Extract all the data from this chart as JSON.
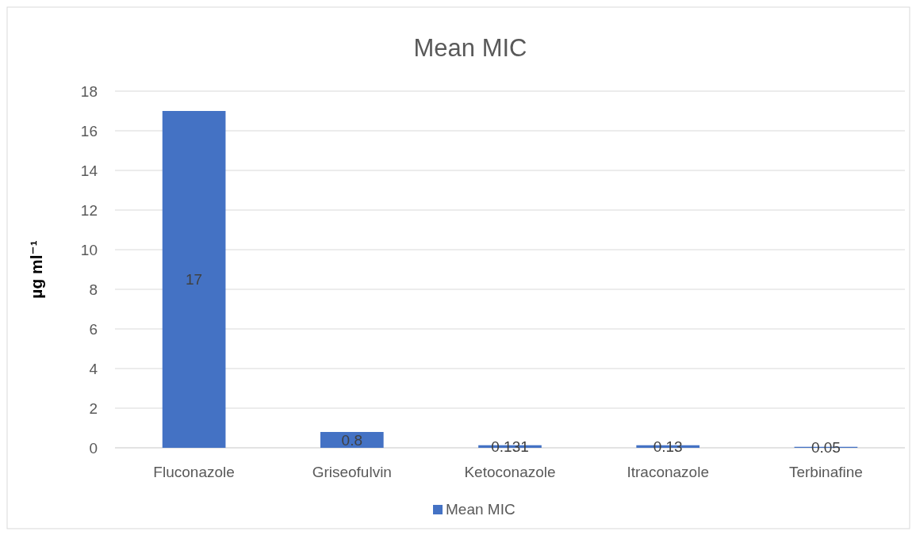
{
  "chart_data": {
    "type": "bar",
    "title": "Mean MIC",
    "ylabel": "µg ml⁻¹",
    "categories": [
      "Fluconazole",
      "Griseofulvin",
      "Ketoconazole",
      "Itraconazole",
      "Terbinafine"
    ],
    "series": [
      {
        "name": "Mean MIC",
        "color": "#4472c4",
        "values": [
          17,
          0.8,
          0.131,
          0.13,
          0.05
        ]
      }
    ],
    "ylim": [
      0,
      18
    ],
    "yticks": [
      0,
      2,
      4,
      6,
      8,
      10,
      12,
      14,
      16,
      18
    ],
    "grid": "y",
    "legend": "bottom",
    "data_labels": true
  }
}
